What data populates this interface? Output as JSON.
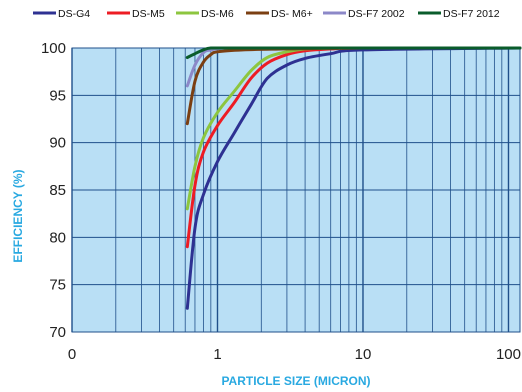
{
  "chart_data": {
    "type": "line",
    "title": "",
    "xlabel": "PARTICLE SIZE (MICRON)",
    "ylabel": "EFFICIENCY (%)",
    "x_scale": "log",
    "xlim": [
      0.1,
      120
    ],
    "ylim": [
      70,
      100
    ],
    "x_tick_labels": [
      "0",
      "1",
      "10",
      "100"
    ],
    "y_ticks": [
      70,
      75,
      80,
      85,
      90,
      95,
      100
    ],
    "grid": true,
    "legend_position": "top",
    "colors": {
      "plot_background": "#b9dff5",
      "grid": "#1f4f8a",
      "axis_title": "#29a9e1"
    },
    "series": [
      {
        "name": "DS-G4",
        "color": "#2e3192",
        "x": [
          0.62,
          0.7,
          0.8,
          1.0,
          1.3,
          1.7,
          2.2,
          3.0,
          4.0,
          6.0,
          10.0,
          120.0
        ],
        "y": [
          72.5,
          81,
          84.5,
          88,
          91,
          94,
          96.8,
          98.2,
          98.9,
          99.4,
          99.8,
          100
        ]
      },
      {
        "name": "DS-M5",
        "color": "#ed1c24",
        "x": [
          0.62,
          0.7,
          0.8,
          1.0,
          1.3,
          1.7,
          2.2,
          3.0,
          4.0,
          6.0,
          10.0,
          120.0
        ],
        "y": [
          79,
          85.5,
          89,
          91.8,
          94.2,
          96.8,
          98.4,
          99.3,
          99.7,
          99.9,
          100,
          100
        ]
      },
      {
        "name": "DS-M6",
        "color": "#8dc63f",
        "x": [
          0.62,
          0.7,
          0.8,
          1.0,
          1.3,
          1.7,
          2.2,
          3.0,
          4.0,
          6.0,
          10.0,
          120.0
        ],
        "y": [
          83,
          87.5,
          90.5,
          93.2,
          95.4,
          97.6,
          99.0,
          99.6,
          99.9,
          100,
          100,
          100
        ]
      },
      {
        "name": "DS- M6+",
        "color": "#7b3f12",
        "x": [
          0.62,
          0.7,
          0.8,
          0.9,
          1.0,
          1.5,
          3.0,
          10.0,
          120.0
        ],
        "y": [
          92,
          96.5,
          98.5,
          99.3,
          99.6,
          99.8,
          99.9,
          100,
          100
        ]
      },
      {
        "name": "DS-F7 2002",
        "color": "#8c88c8",
        "x": [
          0.62,
          0.7,
          0.8,
          0.9,
          1.2,
          3.0,
          120.0
        ],
        "y": [
          96,
          98.2,
          99.5,
          99.8,
          100,
          100,
          100
        ]
      },
      {
        "name": "DS-F7 2012",
        "color": "#0a5c2b",
        "x": [
          0.62,
          0.7,
          0.8,
          0.9,
          1.2,
          3.0,
          120.0
        ],
        "y": [
          99,
          99.4,
          99.8,
          100,
          100,
          100,
          100
        ]
      }
    ]
  }
}
